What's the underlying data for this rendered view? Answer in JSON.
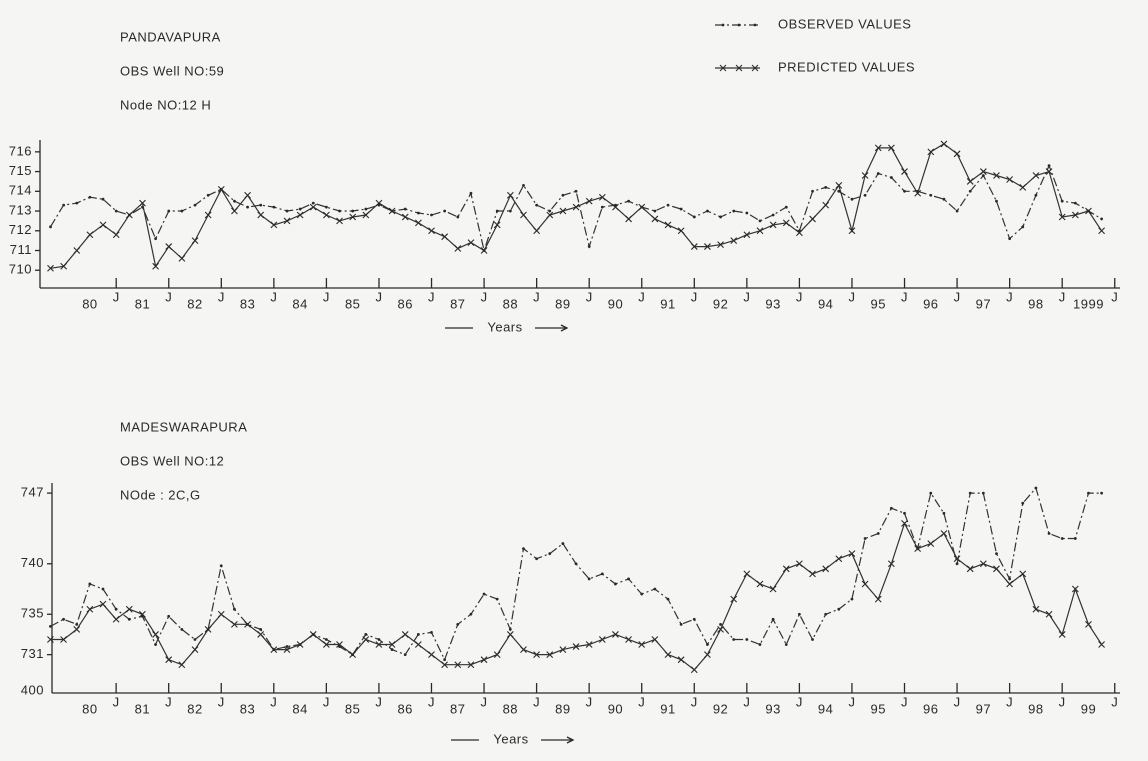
{
  "chart_data": [
    {
      "type": "line",
      "title": "PANDAVAPURA",
      "subtitles": [
        "OBS Well NO:59",
        "Node NO:12 H"
      ],
      "x_label": "Years",
      "legend": "top-right",
      "xlim": [
        1979.55,
        2000.1
      ],
      "ylim": [
        709.1,
        716.6
      ],
      "yticks": [
        710,
        711,
        712,
        713,
        714,
        715,
        716
      ],
      "xticks": [
        {
          "value": 1980.5,
          "label": "80"
        },
        {
          "value": 1981,
          "label": "J"
        },
        {
          "value": 1981.5,
          "label": "81"
        },
        {
          "value": 1982,
          "label": "J"
        },
        {
          "value": 1982.5,
          "label": "82"
        },
        {
          "value": 1983,
          "label": "J"
        },
        {
          "value": 1983.5,
          "label": "83"
        },
        {
          "value": 1984,
          "label": "J"
        },
        {
          "value": 1984.5,
          "label": "84"
        },
        {
          "value": 1985,
          "label": "J"
        },
        {
          "value": 1985.5,
          "label": "85"
        },
        {
          "value": 1986,
          "label": "J"
        },
        {
          "value": 1986.5,
          "label": "86"
        },
        {
          "value": 1987,
          "label": "J"
        },
        {
          "value": 1987.5,
          "label": "87"
        },
        {
          "value": 1988,
          "label": "J"
        },
        {
          "value": 1988.5,
          "label": "88"
        },
        {
          "value": 1989,
          "label": "J"
        },
        {
          "value": 1989.5,
          "label": "89"
        },
        {
          "value": 1990,
          "label": "J"
        },
        {
          "value": 1990.5,
          "label": "90"
        },
        {
          "value": 1991,
          "label": "J"
        },
        {
          "value": 1991.5,
          "label": "91"
        },
        {
          "value": 1992,
          "label": "J"
        },
        {
          "value": 1992.5,
          "label": "92"
        },
        {
          "value": 1993,
          "label": "J"
        },
        {
          "value": 1993.5,
          "label": "93"
        },
        {
          "value": 1994,
          "label": "J"
        },
        {
          "value": 1994.5,
          "label": "94"
        },
        {
          "value": 1995,
          "label": "J"
        },
        {
          "value": 1995.5,
          "label": "95"
        },
        {
          "value": 1996,
          "label": "J"
        },
        {
          "value": 1996.5,
          "label": "96"
        },
        {
          "value": 1997,
          "label": "J"
        },
        {
          "value": 1997.5,
          "label": "97"
        },
        {
          "value": 1998,
          "label": "J"
        },
        {
          "value": 1998.5,
          "label": "98"
        },
        {
          "value": 1999,
          "label": "J"
        },
        {
          "value": 1999.5,
          "label": "1999"
        },
        {
          "value": 2000,
          "label": "J"
        }
      ],
      "x": [
        1979.75,
        1980,
        1980.25,
        1980.5,
        1980.75,
        1981,
        1981.25,
        1981.5,
        1981.75,
        1982,
        1982.25,
        1982.5,
        1982.75,
        1983,
        1983.25,
        1983.5,
        1983.75,
        1984,
        1984.25,
        1984.5,
        1984.75,
        1985,
        1985.25,
        1985.5,
        1985.75,
        1986,
        1986.25,
        1986.5,
        1986.75,
        1987,
        1987.25,
        1987.5,
        1987.75,
        1988,
        1988.25,
        1988.5,
        1988.75,
        1989,
        1989.25,
        1989.5,
        1989.75,
        1990,
        1990.25,
        1990.5,
        1990.75,
        1991,
        1991.25,
        1991.5,
        1991.75,
        1992,
        1992.25,
        1992.5,
        1992.75,
        1993,
        1993.25,
        1993.5,
        1993.75,
        1994,
        1994.25,
        1994.5,
        1994.75,
        1995,
        1995.25,
        1995.5,
        1995.75,
        1996,
        1996.25,
        1996.5,
        1996.75,
        1997,
        1997.25,
        1997.5,
        1997.75,
        1998,
        1998.25,
        1998.5,
        1998.75,
        1999,
        1999.25,
        1999.5,
        1999.75
      ],
      "series": [
        {
          "name": "OBSERVED VALUES",
          "color": "#333333",
          "dash": "dashdot",
          "marker": "dot",
          "values": [
            712.2,
            713.3,
            713.4,
            713.7,
            713.6,
            713.0,
            712.8,
            713.2,
            711.6,
            713.0,
            713.0,
            713.3,
            713.8,
            714.1,
            713.5,
            713.2,
            713.3,
            713.2,
            713.0,
            713.1,
            713.4,
            713.2,
            713.0,
            713.0,
            713.1,
            713.3,
            713.0,
            713.1,
            712.9,
            712.8,
            713.0,
            712.7,
            713.9,
            711.0,
            713.0,
            713.0,
            714.3,
            713.3,
            713.0,
            713.8,
            714.0,
            711.2,
            713.2,
            713.3,
            713.5,
            713.2,
            713.0,
            713.3,
            713.1,
            712.7,
            713.0,
            712.7,
            713.0,
            712.9,
            712.5,
            712.8,
            713.2,
            712.0,
            714.0,
            714.2,
            714.0,
            713.6,
            713.8,
            714.9,
            714.7,
            714.0,
            714.0,
            713.8,
            713.6,
            713.0,
            714.0,
            714.8,
            713.5,
            711.6,
            712.2,
            713.8,
            715.3,
            713.5,
            713.4,
            713.0,
            712.6
          ]
        },
        {
          "name": "PREDICTED VALUES",
          "color": "#333333",
          "dash": "solid",
          "marker": "x",
          "values": [
            710.1,
            710.2,
            711.0,
            711.8,
            712.3,
            711.8,
            712.8,
            713.4,
            710.2,
            711.2,
            710.6,
            711.5,
            712.8,
            714.1,
            713.0,
            713.8,
            712.8,
            712.3,
            712.5,
            712.8,
            713.2,
            712.8,
            712.5,
            712.7,
            712.8,
            713.4,
            713.0,
            712.7,
            712.4,
            712.0,
            711.7,
            711.1,
            711.4,
            711.0,
            712.3,
            713.8,
            712.8,
            712.0,
            712.8,
            713.0,
            713.2,
            713.5,
            713.7,
            713.2,
            712.6,
            713.2,
            712.6,
            712.3,
            712.0,
            711.2,
            711.2,
            711.3,
            711.5,
            711.8,
            712.0,
            712.3,
            712.4,
            711.9,
            712.6,
            713.3,
            714.3,
            712.0,
            714.8,
            716.2,
            716.2,
            715.0,
            713.9,
            716.0,
            716.4,
            715.9,
            714.5,
            715.0,
            714.8,
            714.6,
            714.2,
            714.8,
            715.0,
            712.7,
            712.8,
            713.0,
            712.0
          ]
        }
      ]
    },
    {
      "type": "line",
      "title": "MADESWARAPURA",
      "subtitles": [
        "OBS Well NO:12",
        "NOde : 2C,G"
      ],
      "x_label": "Years",
      "y_axis_break_label": "400",
      "xlim": [
        1979.78,
        2000.1
      ],
      "ylim": [
        727.2,
        748
      ],
      "yticks": [
        731,
        735,
        740,
        747
      ],
      "xticks": [
        {
          "value": 1980.5,
          "label": "80"
        },
        {
          "value": 1981,
          "label": "J"
        },
        {
          "value": 1981.5,
          "label": "81"
        },
        {
          "value": 1982,
          "label": "J"
        },
        {
          "value": 1982.5,
          "label": "82"
        },
        {
          "value": 1983,
          "label": "J"
        },
        {
          "value": 1983.5,
          "label": "83"
        },
        {
          "value": 1984,
          "label": "J"
        },
        {
          "value": 1984.5,
          "label": "84"
        },
        {
          "value": 1985,
          "label": "J"
        },
        {
          "value": 1985.5,
          "label": "85"
        },
        {
          "value": 1986,
          "label": "J"
        },
        {
          "value": 1986.5,
          "label": "86"
        },
        {
          "value": 1987,
          "label": "J"
        },
        {
          "value": 1987.5,
          "label": "87"
        },
        {
          "value": 1988,
          "label": "J"
        },
        {
          "value": 1988.5,
          "label": "88"
        },
        {
          "value": 1989,
          "label": "J"
        },
        {
          "value": 1989.5,
          "label": "89"
        },
        {
          "value": 1990,
          "label": "J"
        },
        {
          "value": 1990.5,
          "label": "90"
        },
        {
          "value": 1991,
          "label": "J"
        },
        {
          "value": 1991.5,
          "label": "91"
        },
        {
          "value": 1992,
          "label": "J"
        },
        {
          "value": 1992.5,
          "label": "92"
        },
        {
          "value": 1993,
          "label": "J"
        },
        {
          "value": 1993.5,
          "label": "93"
        },
        {
          "value": 1994,
          "label": "J"
        },
        {
          "value": 1994.5,
          "label": "94"
        },
        {
          "value": 1995,
          "label": "J"
        },
        {
          "value": 1995.5,
          "label": "95"
        },
        {
          "value": 1996,
          "label": "J"
        },
        {
          "value": 1996.5,
          "label": "96"
        },
        {
          "value": 1997,
          "label": "J"
        },
        {
          "value": 1997.5,
          "label": "97"
        },
        {
          "value": 1998,
          "label": "J"
        },
        {
          "value": 1998.5,
          "label": "98"
        },
        {
          "value": 1999,
          "label": "J"
        },
        {
          "value": 1999.5,
          "label": "99"
        },
        {
          "value": 2000,
          "label": "J"
        }
      ],
      "x": [
        1979.75,
        1980,
        1980.25,
        1980.5,
        1980.75,
        1981,
        1981.25,
        1981.5,
        1981.75,
        1982,
        1982.25,
        1982.5,
        1982.75,
        1983,
        1983.25,
        1983.5,
        1983.75,
        1984,
        1984.25,
        1984.5,
        1984.75,
        1985,
        1985.25,
        1985.5,
        1985.75,
        1986,
        1986.25,
        1986.5,
        1986.75,
        1987,
        1987.25,
        1987.5,
        1987.75,
        1988,
        1988.25,
        1988.5,
        1988.75,
        1989,
        1989.25,
        1989.5,
        1989.75,
        1990,
        1990.25,
        1990.5,
        1990.75,
        1991,
        1991.25,
        1991.5,
        1991.75,
        1992,
        1992.25,
        1992.5,
        1992.75,
        1993,
        1993.25,
        1993.5,
        1993.75,
        1994,
        1994.25,
        1994.5,
        1994.75,
        1995,
        1995.25,
        1995.5,
        1995.75,
        1996,
        1996.25,
        1996.5,
        1996.75,
        1997,
        1997.25,
        1997.5,
        1997.75,
        1998,
        1998.25,
        1998.5,
        1998.75,
        1999,
        1999.25,
        1999.5,
        1999.75
      ],
      "series": [
        {
          "color": "#333333",
          "dash": "dashdot",
          "marker": "dot",
          "values": [
            733.8,
            734.5,
            734.0,
            738.0,
            737.5,
            735.5,
            734.5,
            734.8,
            732.0,
            734.8,
            733.5,
            732.5,
            733.5,
            739.8,
            735.5,
            734.0,
            733.5,
            731.5,
            731.8,
            732.0,
            733.0,
            732.5,
            731.8,
            731.0,
            733.0,
            732.5,
            731.5,
            731.0,
            733.0,
            733.2,
            730.5,
            734.0,
            735.0,
            737.0,
            736.5,
            733.5,
            741.5,
            740.5,
            741.0,
            742.0,
            740.0,
            738.5,
            739.0,
            738.0,
            738.5,
            737.0,
            737.5,
            736.5,
            734.0,
            734.5,
            732.0,
            734.0,
            732.5,
            732.5,
            732.0,
            734.5,
            732.0,
            735.0,
            732.5,
            735.0,
            735.5,
            736.5,
            742.5,
            743.0,
            745.5,
            745.0,
            741.5,
            747.0,
            745.0,
            740.0,
            747.0,
            747.0,
            741.0,
            738.5,
            746.0,
            747.5,
            743.0,
            742.5,
            742.5,
            747.0,
            747.0
          ]
        },
        {
          "color": "#333333",
          "dash": "solid",
          "marker": "x",
          "values": [
            732.5,
            732.5,
            733.5,
            735.5,
            736.0,
            734.5,
            735.5,
            735.0,
            733.0,
            730.5,
            730.0,
            731.5,
            733.5,
            735.0,
            734.0,
            734.0,
            733.0,
            731.5,
            731.5,
            732.0,
            733.0,
            732.0,
            732.0,
            731.0,
            732.5,
            732.0,
            732.0,
            733.0,
            732.0,
            731.0,
            730.0,
            730.0,
            730.0,
            730.5,
            731.0,
            733.0,
            731.5,
            731.0,
            731.0,
            731.5,
            731.8,
            732.0,
            732.5,
            733.0,
            732.5,
            732.0,
            732.5,
            731.0,
            730.5,
            729.5,
            731.0,
            733.5,
            736.5,
            739.0,
            738.0,
            737.5,
            739.5,
            740.0,
            739.0,
            739.5,
            740.5,
            741.0,
            738.0,
            736.5,
            740.0,
            744.0,
            741.5,
            742.0,
            743.0,
            740.5,
            739.5,
            740.0,
            739.5,
            738.0,
            739.0,
            735.5,
            735.0,
            733.0,
            737.5,
            734.0,
            732.0
          ]
        }
      ]
    }
  ]
}
